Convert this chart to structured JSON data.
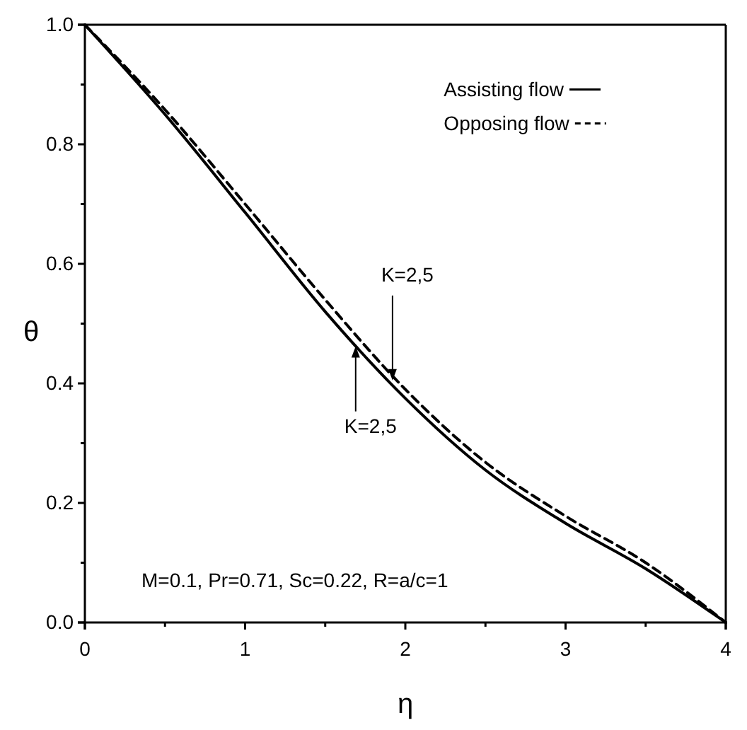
{
  "chart_data": {
    "type": "line",
    "xlabel": "η",
    "ylabel": "θ",
    "x": [
      0,
      0.5,
      1,
      1.5,
      2,
      2.5,
      3,
      3.5,
      4
    ],
    "series": [
      {
        "name": "Assisting flow",
        "color": "#000000",
        "line_style": "solid",
        "values": [
          1,
          0.85,
          0.686,
          0.52,
          0.375,
          0.255,
          0.166,
          0.09,
          0
        ]
      },
      {
        "name": "Opposing flow",
        "color": "#000000",
        "line_style": "dashed",
        "values": [
          1,
          0.858,
          0.7,
          0.54,
          0.39,
          0.268,
          0.178,
          0.1,
          0
        ]
      }
    ],
    "xlim": [
      0,
      4
    ],
    "ylim": [
      0,
      1
    ],
    "xticks": [
      0,
      {
        "value": 0.5,
        "label": null
      },
      1,
      {
        "value": 1.5,
        "label": null
      },
      2,
      {
        "value": 2.5,
        "label": null
      },
      3,
      {
        "value": 3.5,
        "label": null
      },
      4
    ],
    "yticks": [
      {
        "value": 0,
        "label": "0.0"
      },
      {
        "value": 0.1,
        "label": null
      },
      {
        "value": 0.2,
        "label": "0.2"
      },
      {
        "value": 0.3,
        "label": null
      },
      {
        "value": 0.4,
        "label": "0.4"
      },
      {
        "value": 0.5,
        "label": null
      },
      {
        "value": 0.6,
        "label": "0.6"
      },
      {
        "value": 0.7,
        "label": null
      },
      {
        "value": 0.8,
        "label": "0.8"
      },
      {
        "value": 0.9,
        "label": null
      },
      {
        "value": 1,
        "label": "1.0"
      }
    ],
    "grid": false,
    "legend": "top right",
    "marker": "none",
    "annotations": [
      {
        "text": "K=2,5",
        "x": 1.92,
        "y": 0.405
      },
      {
        "text": "K=2,5",
        "x": 1.69,
        "y": 0.462
      },
      "M=0.1, Pr=0.71, Sc=0.22, R=a/c=1"
    ]
  }
}
